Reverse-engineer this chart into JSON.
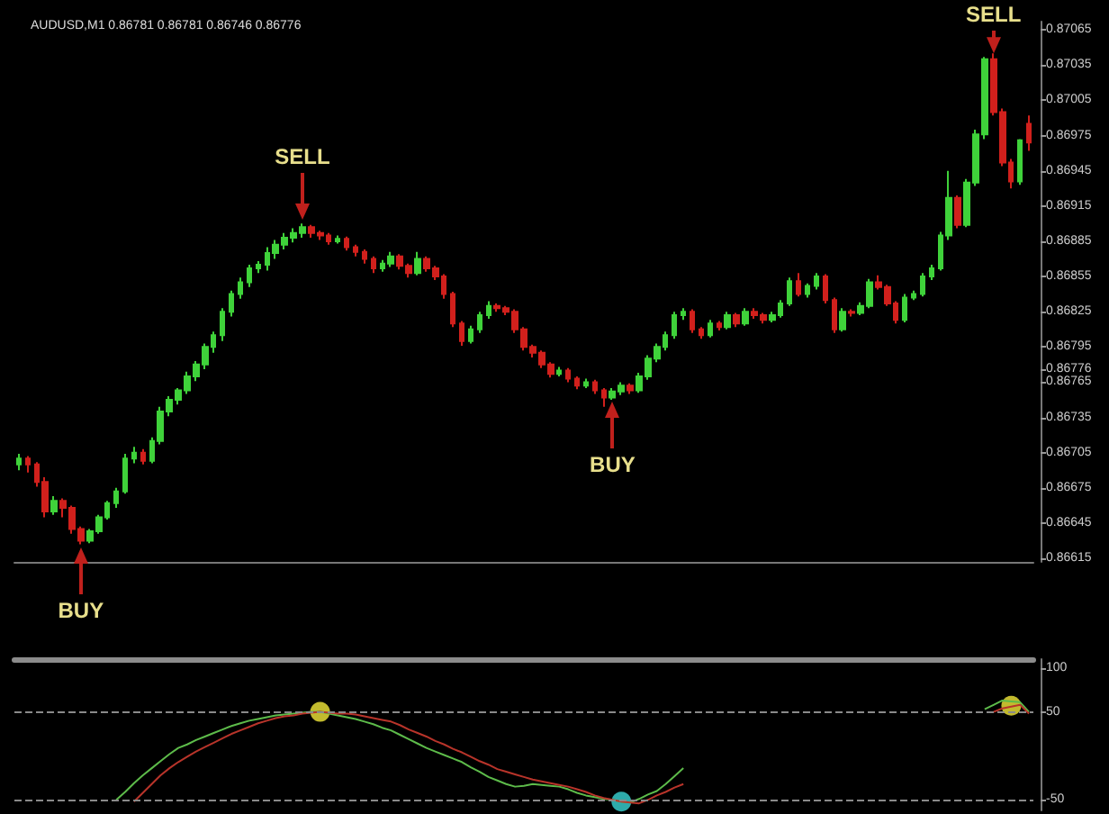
{
  "chart_data": [
    {
      "type": "candlestick",
      "title": "AUDUSD,M1 0.86781 0.86781 0.86746 0.86776",
      "tick_labels": "y",
      "grid": false,
      "categories": [
        null,
        null,
        null,
        null,
        null,
        null,
        null,
        null,
        null,
        null,
        null,
        null,
        null,
        null,
        null,
        null,
        null,
        null,
        null,
        null,
        null,
        null,
        null,
        null,
        null,
        null,
        null,
        null,
        null,
        null,
        null,
        null,
        null,
        null,
        null,
        null,
        null,
        null,
        null,
        null,
        null,
        null,
        null,
        null,
        null,
        null,
        null,
        null,
        null,
        null,
        null,
        null,
        null,
        null,
        null,
        null,
        null,
        null,
        null,
        null,
        null,
        null,
        null,
        null,
        null,
        null,
        null,
        null,
        null,
        null,
        null,
        null,
        null,
        null,
        null,
        null,
        null,
        null,
        null,
        null,
        null,
        null,
        null,
        null,
        null,
        null,
        null,
        null,
        null,
        null,
        null,
        null,
        null,
        null,
        null,
        null,
        null,
        null,
        null,
        null,
        null,
        null,
        null,
        null,
        null,
        null,
        null,
        null,
        null,
        null,
        null,
        null,
        null,
        null,
        null
      ],
      "ylim": [
        0.86612,
        0.87072
      ],
      "yticks": [
        0.86615,
        0.86645,
        0.86675,
        0.86705,
        0.86735,
        0.86765,
        0.86776,
        0.86795,
        0.86825,
        0.86855,
        0.86885,
        0.86915,
        0.86945,
        0.86975,
        0.87005,
        0.87035,
        0.87065
      ],
      "ohlc": [
        [
          0.86695,
          0.86704,
          0.8669,
          0.867
        ],
        [
          0.867,
          0.86702,
          0.86688,
          0.86695
        ],
        [
          0.86695,
          0.86697,
          0.86676,
          0.8668
        ],
        [
          0.8668,
          0.86684,
          0.8665,
          0.86655
        ],
        [
          0.86655,
          0.86668,
          0.86652,
          0.86664
        ],
        [
          0.86664,
          0.86666,
          0.8665,
          0.86658
        ],
        [
          0.86658,
          0.8666,
          0.86636,
          0.8664
        ],
        [
          0.8664,
          0.86642,
          0.86627,
          0.8663
        ],
        [
          0.8663,
          0.8664,
          0.86628,
          0.86638
        ],
        [
          0.86638,
          0.86652,
          0.86636,
          0.8665
        ],
        [
          0.8665,
          0.86664,
          0.86648,
          0.86662
        ],
        [
          0.86662,
          0.86675,
          0.86658,
          0.86672
        ],
        [
          0.86672,
          0.86704,
          0.8667,
          0.867
        ],
        [
          0.867,
          0.8671,
          0.86696,
          0.86705
        ],
        [
          0.86705,
          0.86708,
          0.86695,
          0.86698
        ],
        [
          0.86698,
          0.86718,
          0.86696,
          0.86715
        ],
        [
          0.86715,
          0.86744,
          0.86712,
          0.8674
        ],
        [
          0.8674,
          0.86753,
          0.86736,
          0.8675
        ],
        [
          0.8675,
          0.8676,
          0.86746,
          0.86758
        ],
        [
          0.86758,
          0.86774,
          0.86755,
          0.8677
        ],
        [
          0.8677,
          0.86783,
          0.86766,
          0.8678
        ],
        [
          0.8678,
          0.86798,
          0.86776,
          0.86795
        ],
        [
          0.86795,
          0.86808,
          0.8679,
          0.86805
        ],
        [
          0.86805,
          0.86828,
          0.868,
          0.86825
        ],
        [
          0.86825,
          0.86843,
          0.86821,
          0.8684
        ],
        [
          0.8684,
          0.86854,
          0.86836,
          0.8685
        ],
        [
          0.8685,
          0.86865,
          0.86846,
          0.86862
        ],
        [
          0.86862,
          0.86868,
          0.86858,
          0.86865
        ],
        [
          0.86865,
          0.8688,
          0.8686,
          0.86875
        ],
        [
          0.86875,
          0.86886,
          0.8687,
          0.86882
        ],
        [
          0.86882,
          0.86892,
          0.86878,
          0.86888
        ],
        [
          0.86888,
          0.86896,
          0.86884,
          0.86892
        ],
        [
          0.86892,
          0.869,
          0.86888,
          0.86897
        ],
        [
          0.86897,
          0.86899,
          0.86888,
          0.86892
        ],
        [
          0.86892,
          0.86894,
          0.86886,
          0.8689
        ],
        [
          0.8689,
          0.86892,
          0.86882,
          0.86885
        ],
        [
          0.86885,
          0.8689,
          0.86883,
          0.86887
        ],
        [
          0.86887,
          0.86889,
          0.86877,
          0.8688
        ],
        [
          0.8688,
          0.86882,
          0.86872,
          0.86876
        ],
        [
          0.86876,
          0.86878,
          0.86866,
          0.8687
        ],
        [
          0.8687,
          0.86872,
          0.86858,
          0.86862
        ],
        [
          0.86862,
          0.86869,
          0.86859,
          0.86866
        ],
        [
          0.86866,
          0.86876,
          0.86863,
          0.86872
        ],
        [
          0.86872,
          0.86874,
          0.86861,
          0.86864
        ],
        [
          0.86864,
          0.86866,
          0.86854,
          0.86858
        ],
        [
          0.86858,
          0.86876,
          0.86856,
          0.8687
        ],
        [
          0.8687,
          0.86872,
          0.86859,
          0.86862
        ],
        [
          0.86862,
          0.86864,
          0.86852,
          0.86855
        ],
        [
          0.86855,
          0.86857,
          0.86836,
          0.8684
        ],
        [
          0.8684,
          0.86842,
          0.86812,
          0.86815
        ],
        [
          0.86815,
          0.86817,
          0.86796,
          0.868
        ],
        [
          0.868,
          0.86813,
          0.86798,
          0.8681
        ],
        [
          0.8681,
          0.86825,
          0.86807,
          0.86822
        ],
        [
          0.86822,
          0.86834,
          0.86819,
          0.8683
        ],
        [
          0.8683,
          0.86832,
          0.86825,
          0.86828
        ],
        [
          0.86828,
          0.8683,
          0.86822,
          0.86825
        ],
        [
          0.86825,
          0.86827,
          0.86807,
          0.8681
        ],
        [
          0.8681,
          0.86812,
          0.86792,
          0.86795
        ],
        [
          0.86795,
          0.86797,
          0.86786,
          0.8679
        ],
        [
          0.8679,
          0.86792,
          0.86777,
          0.8678
        ],
        [
          0.8678,
          0.86782,
          0.86769,
          0.86772
        ],
        [
          0.86772,
          0.86778,
          0.8677,
          0.86775
        ],
        [
          0.86775,
          0.86777,
          0.86765,
          0.86768
        ],
        [
          0.86768,
          0.8677,
          0.86759,
          0.86762
        ],
        [
          0.86762,
          0.86768,
          0.8676,
          0.86765
        ],
        [
          0.86765,
          0.86767,
          0.86755,
          0.86758
        ],
        [
          0.86758,
          0.8676,
          0.86744,
          0.86752
        ],
        [
          0.86752,
          0.8676,
          0.8675,
          0.86757
        ],
        [
          0.86757,
          0.86765,
          0.86754,
          0.86762
        ],
        [
          0.86762,
          0.86764,
          0.86755,
          0.86758
        ],
        [
          0.86758,
          0.86773,
          0.86756,
          0.8677
        ],
        [
          0.8677,
          0.86788,
          0.86767,
          0.86785
        ],
        [
          0.86785,
          0.86798,
          0.86782,
          0.86795
        ],
        [
          0.86795,
          0.86808,
          0.86792,
          0.86805
        ],
        [
          0.86805,
          0.86825,
          0.86802,
          0.86822
        ],
        [
          0.86822,
          0.86828,
          0.86818,
          0.86825
        ],
        [
          0.86825,
          0.86827,
          0.86807,
          0.8681
        ],
        [
          0.8681,
          0.86812,
          0.86802,
          0.86805
        ],
        [
          0.86805,
          0.86818,
          0.86803,
          0.86815
        ],
        [
          0.86815,
          0.86817,
          0.86809,
          0.86812
        ],
        [
          0.86812,
          0.86825,
          0.8681,
          0.86822
        ],
        [
          0.86822,
          0.86824,
          0.86812,
          0.86815
        ],
        [
          0.86815,
          0.86828,
          0.86813,
          0.86825
        ],
        [
          0.86825,
          0.86828,
          0.86819,
          0.86822
        ],
        [
          0.86822,
          0.86824,
          0.86815,
          0.86818
        ],
        [
          0.86818,
          0.86825,
          0.86816,
          0.86822
        ],
        [
          0.86822,
          0.86835,
          0.8682,
          0.86832
        ],
        [
          0.86832,
          0.86854,
          0.8683,
          0.86851
        ],
        [
          0.86851,
          0.86858,
          0.86838,
          0.8684
        ],
        [
          0.8684,
          0.86849,
          0.86837,
          0.86847
        ],
        [
          0.86847,
          0.86858,
          0.86844,
          0.86855
        ],
        [
          0.86855,
          0.86857,
          0.86832,
          0.86835
        ],
        [
          0.86835,
          0.86837,
          0.86807,
          0.8681
        ],
        [
          0.8681,
          0.86828,
          0.86808,
          0.86825
        ],
        [
          0.86825,
          0.86827,
          0.86821,
          0.86824
        ],
        [
          0.86824,
          0.86833,
          0.86822,
          0.8683
        ],
        [
          0.8683,
          0.86853,
          0.86828,
          0.8685
        ],
        [
          0.8685,
          0.86856,
          0.86844,
          0.86846
        ],
        [
          0.86846,
          0.86848,
          0.8683,
          0.86832
        ],
        [
          0.86832,
          0.86834,
          0.86815,
          0.86818
        ],
        [
          0.86818,
          0.8684,
          0.86816,
          0.86837
        ],
        [
          0.86837,
          0.86843,
          0.86835,
          0.8684
        ],
        [
          0.8684,
          0.86858,
          0.86838,
          0.86855
        ],
        [
          0.86855,
          0.86865,
          0.86852,
          0.86862
        ],
        [
          0.86862,
          0.86893,
          0.8686,
          0.8689
        ],
        [
          0.8689,
          0.86945,
          0.86886,
          0.86922
        ],
        [
          0.86922,
          0.86924,
          0.86896,
          0.86899
        ],
        [
          0.86899,
          0.86938,
          0.86897,
          0.86935
        ],
        [
          0.86935,
          0.8698,
          0.86932,
          0.86976
        ],
        [
          0.86976,
          0.87042,
          0.86972,
          0.8704
        ],
        [
          0.8704,
          0.87045,
          0.86992,
          0.86995
        ],
        [
          0.86995,
          0.86998,
          0.86949,
          0.86952
        ],
        [
          0.86952,
          0.86955,
          0.8693,
          0.86936
        ],
        [
          0.86936,
          0.86972,
          0.86933,
          0.86971
        ],
        [
          0.86985,
          0.86992,
          0.86962,
          0.86969
        ]
      ],
      "annotations": [
        {
          "text": "SELL",
          "y": 0.86903
        },
        {
          "text": "BUY",
          "y": 0.86624
        },
        {
          "text": "BUY",
          "y": 0.86749
        },
        {
          "text": "SELL",
          "y": 0.87045
        }
      ]
    },
    {
      "type": "line",
      "tick_labels": "y",
      "grid": false,
      "categories": [
        null,
        null,
        null,
        null,
        null,
        null,
        null,
        null,
        null,
        null,
        null,
        null,
        null,
        null,
        null,
        null,
        null,
        null,
        null,
        null,
        null,
        null,
        null,
        null,
        null,
        null,
        null,
        null,
        null,
        null,
        null,
        null,
        null,
        null,
        null,
        null,
        null,
        null,
        null,
        null,
        null,
        null,
        null,
        null,
        null,
        null,
        null,
        null,
        null,
        null,
        null,
        null,
        null,
        null,
        null,
        null,
        null,
        null,
        null,
        null,
        null,
        null,
        null,
        null,
        null,
        null,
        null,
        null,
        null,
        null,
        null,
        null,
        null,
        null,
        null,
        null,
        null,
        null,
        null,
        null,
        null,
        null,
        null,
        null,
        null,
        null,
        null,
        null,
        null,
        null,
        null,
        null,
        null,
        null,
        null,
        null,
        null,
        null,
        null,
        null,
        null,
        null,
        null,
        null,
        null,
        null,
        null,
        null,
        null,
        null,
        null,
        null,
        null,
        null,
        null
      ],
      "ylim": [
        -62,
        110
      ],
      "yticks": [
        100,
        50,
        -50
      ],
      "ref_lines": [
        {
          "axis": "y",
          "value": 50,
          "color": "#8a8a8a",
          "line_style": "dashed"
        },
        {
          "axis": "y",
          "value": -50,
          "color": "#8a8a8a",
          "line_style": "dashed"
        }
      ],
      "series": [
        {
          "type": "line",
          "color": "#5dbb4a",
          "values": [
            null,
            null,
            null,
            null,
            null,
            null,
            null,
            null,
            null,
            null,
            null,
            -50,
            -41,
            -31,
            -22,
            -14,
            -6,
            2,
            9,
            13,
            18,
            22,
            26,
            30,
            34,
            37,
            40,
            42,
            44,
            46,
            47,
            48,
            49,
            50,
            50,
            48,
            46,
            44,
            42,
            39,
            36,
            32,
            29,
            24,
            19,
            14,
            9,
            5,
            1,
            -3,
            -7,
            -13,
            -18,
            -24,
            -28,
            -32,
            -35,
            -34,
            -32,
            -33,
            -34,
            -35,
            -38,
            -42,
            -45,
            -47,
            -49,
            -50,
            -52,
            -53,
            -49,
            -44,
            -40,
            -32,
            -23,
            -14,
            null,
            null,
            null,
            null,
            null,
            null,
            null,
            null,
            null,
            null,
            null,
            null,
            null,
            null,
            null,
            null,
            null,
            null,
            null,
            null,
            null,
            null,
            null,
            null,
            null,
            null,
            null,
            null,
            null,
            null,
            null,
            null,
            null,
            null,
            null,
            null,
            null,
            null,
            null
          ]
        },
        {
          "type": "line",
          "color": "#5dbb4a",
          "values": [
            null,
            null,
            null,
            null,
            null,
            null,
            null,
            null,
            null,
            null,
            null,
            null,
            null,
            null,
            null,
            null,
            null,
            null,
            null,
            null,
            null,
            null,
            null,
            null,
            null,
            null,
            null,
            null,
            null,
            null,
            null,
            null,
            null,
            null,
            null,
            null,
            null,
            null,
            null,
            null,
            null,
            null,
            null,
            null,
            null,
            null,
            null,
            null,
            null,
            null,
            null,
            null,
            null,
            null,
            null,
            null,
            null,
            null,
            null,
            null,
            null,
            null,
            null,
            null,
            null,
            null,
            null,
            null,
            null,
            null,
            null,
            null,
            null,
            null,
            null,
            null,
            null,
            null,
            null,
            null,
            null,
            null,
            null,
            null,
            null,
            null,
            null,
            null,
            null,
            null,
            null,
            null,
            null,
            null,
            null,
            null,
            null,
            null,
            null,
            null,
            null,
            null,
            null,
            null,
            null,
            null,
            null,
            null,
            null,
            53,
            58,
            63,
            62,
            61,
            50
          ]
        },
        {
          "type": "line",
          "color": "#b8342a",
          "values": [
            null,
            null,
            null,
            null,
            null,
            null,
            null,
            null,
            null,
            null,
            null,
            null,
            null,
            -52,
            -42,
            -32,
            -22,
            -14,
            -7,
            -1,
            5,
            10,
            15,
            20,
            25,
            29,
            33,
            37,
            40,
            43,
            45,
            46,
            48,
            49,
            50,
            49,
            48,
            48,
            47,
            45,
            43,
            41,
            39,
            35,
            30,
            26,
            22,
            17,
            13,
            8,
            4,
            -1,
            -6,
            -10,
            -15,
            -18,
            -21,
            -24,
            -27,
            -29,
            -31,
            -33,
            -35,
            -38,
            -41,
            -45,
            -48,
            -50,
            -52,
            -53,
            -54,
            -50,
            -45,
            -41,
            -36,
            -32,
            null,
            null,
            null,
            null,
            null,
            null,
            null,
            null,
            null,
            null,
            null,
            null,
            null,
            null,
            null,
            null,
            null,
            null,
            null,
            null,
            null,
            null,
            null,
            null,
            null,
            null,
            null,
            null,
            null,
            null,
            null,
            null,
            null,
            null,
            null,
            null,
            null,
            null,
            null
          ]
        },
        {
          "type": "line",
          "color": "#b8342a",
          "values": [
            null,
            null,
            null,
            null,
            null,
            null,
            null,
            null,
            null,
            null,
            null,
            null,
            null,
            null,
            null,
            null,
            null,
            null,
            null,
            null,
            null,
            null,
            null,
            null,
            null,
            null,
            null,
            null,
            null,
            null,
            null,
            null,
            null,
            null,
            null,
            null,
            null,
            null,
            null,
            null,
            null,
            null,
            null,
            null,
            null,
            null,
            null,
            null,
            null,
            null,
            null,
            null,
            null,
            null,
            null,
            null,
            null,
            null,
            null,
            null,
            null,
            null,
            null,
            null,
            null,
            null,
            null,
            null,
            null,
            null,
            null,
            null,
            null,
            null,
            null,
            null,
            null,
            null,
            null,
            null,
            null,
            null,
            null,
            null,
            null,
            null,
            null,
            null,
            null,
            null,
            null,
            null,
            null,
            null,
            null,
            null,
            null,
            null,
            null,
            null,
            null,
            null,
            null,
            null,
            null,
            null,
            null,
            null,
            null,
            null,
            50,
            54,
            56,
            58,
            48
          ]
        },
        {
          "type": "scatter",
          "colors": [
            null,
            null,
            null,
            null,
            null,
            null,
            null,
            null,
            null,
            null,
            null,
            null,
            null,
            null,
            null,
            null,
            null,
            null,
            null,
            null,
            null,
            null,
            null,
            null,
            null,
            null,
            null,
            null,
            null,
            null,
            null,
            null,
            null,
            null,
            "#f2e83a",
            null,
            null,
            null,
            null,
            null,
            null,
            null,
            null,
            null,
            null,
            null,
            null,
            null,
            null,
            null,
            null,
            null,
            null,
            null,
            null,
            null,
            null,
            null,
            null,
            null,
            null,
            null,
            null,
            null,
            null,
            null,
            null,
            null,
            "#3ad6d6",
            null,
            null,
            null,
            null,
            null,
            null,
            null,
            null,
            null,
            null,
            null,
            null,
            null,
            null,
            null,
            null,
            null,
            null,
            null,
            null,
            null,
            null,
            null,
            null,
            null,
            null,
            null,
            null,
            null,
            null,
            null,
            null,
            null,
            null,
            null,
            null,
            null,
            null,
            null,
            null,
            null,
            null,
            null,
            "#f2e83a",
            null,
            null
          ],
          "values": [
            null,
            null,
            null,
            null,
            null,
            null,
            null,
            null,
            null,
            null,
            null,
            null,
            null,
            null,
            null,
            null,
            null,
            null,
            null,
            null,
            null,
            null,
            null,
            null,
            null,
            null,
            null,
            null,
            null,
            null,
            null,
            null,
            null,
            null,
            50,
            null,
            null,
            null,
            null,
            null,
            null,
            null,
            null,
            null,
            null,
            null,
            null,
            null,
            null,
            null,
            null,
            null,
            null,
            null,
            null,
            null,
            null,
            null,
            null,
            null,
            null,
            null,
            null,
            null,
            null,
            null,
            null,
            null,
            -52,
            null,
            null,
            null,
            null,
            null,
            null,
            null,
            null,
            null,
            null,
            null,
            null,
            null,
            null,
            null,
            null,
            null,
            null,
            null,
            null,
            null,
            null,
            null,
            null,
            null,
            null,
            null,
            null,
            null,
            null,
            null,
            null,
            null,
            null,
            null,
            null,
            null,
            null,
            null,
            null,
            null,
            null,
            null,
            57,
            null,
            null
          ]
        }
      ]
    }
  ]
}
